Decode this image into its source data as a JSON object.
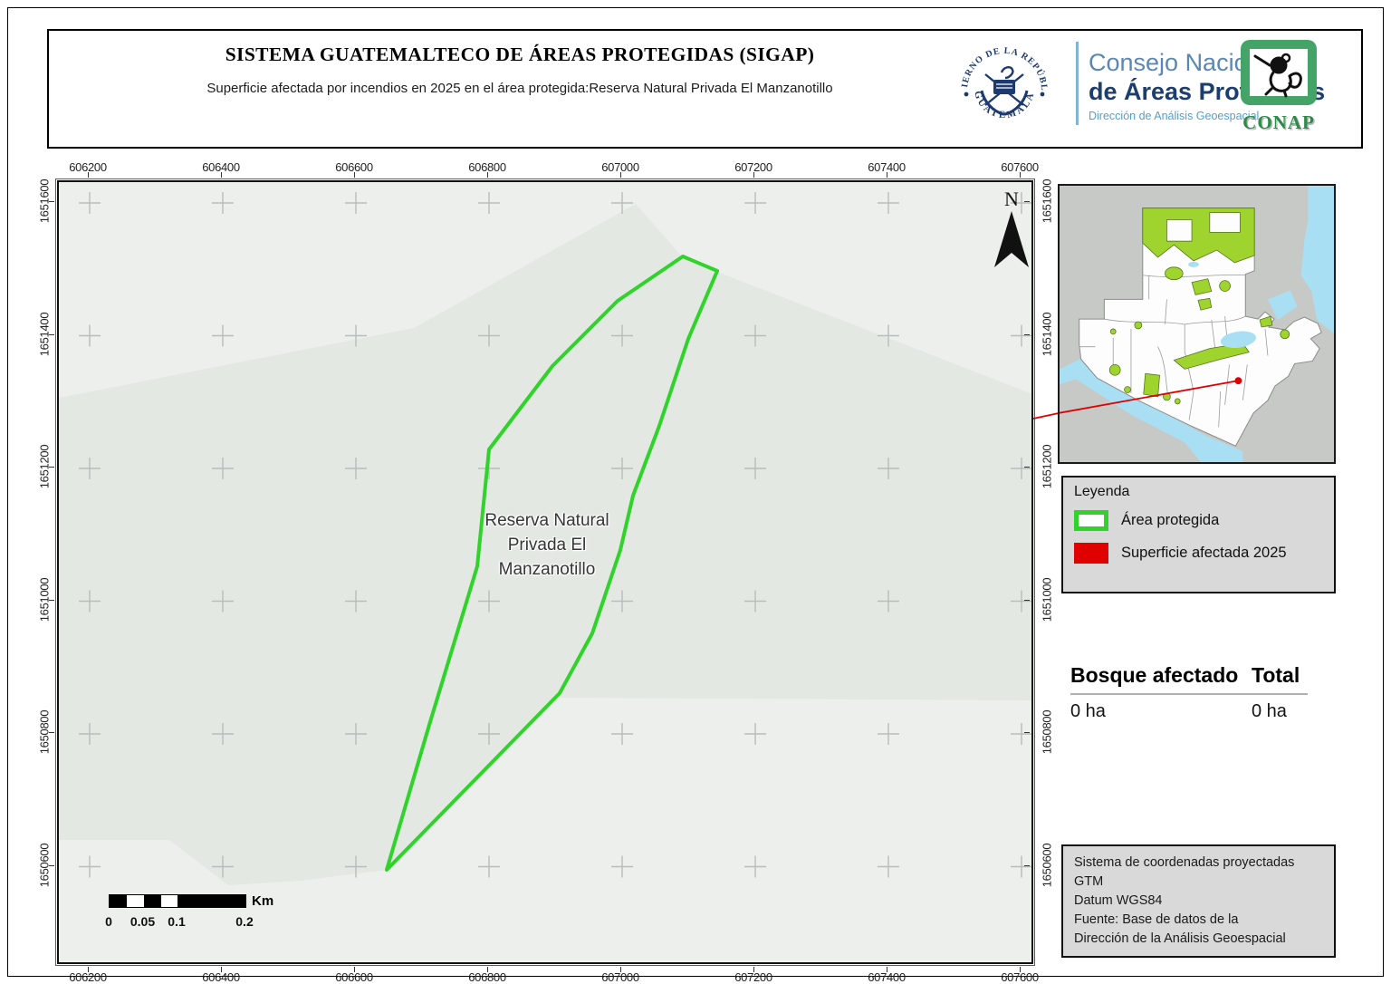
{
  "header": {
    "title": "SISTEMA GUATEMALTECO DE ÁREAS PROTEGIDAS  (SIGAP)",
    "subtitle": "Superficie afectada por incendios en 2025 en el área protegida:Reserva Natural Privada El Manzanotillo",
    "seal_text_top": "GOBIERNO DE LA REPÚBLICA",
    "seal_text_bottom": "GUATEMALA",
    "consejo_line1": "Consejo Nacional",
    "consejo_line2": "de Áreas Protegidas",
    "consejo_line3": "Dirección de Análisis Geoespacial",
    "conap_name": "CONAP"
  },
  "map": {
    "x_ticks": [
      "606200",
      "606400",
      "606600",
      "606800",
      "607000",
      "607200",
      "607400",
      "607600"
    ],
    "y_ticks": [
      "1651600",
      "1651400",
      "1651200",
      "1651000",
      "1650800",
      "1650600"
    ],
    "area_label_line1": "Reserva Natural",
    "area_label_line2": "Privada El",
    "area_label_line3": "Manzanotillo",
    "north_label": "N",
    "scalebar": {
      "labels": [
        "0",
        "0.05",
        "0.1",
        "0.2"
      ],
      "unit": "Km"
    }
  },
  "legend": {
    "title": "Leyenda",
    "items": [
      {
        "label": "Área protegida",
        "swatch": "outline"
      },
      {
        "label": "Superficie afectada 2025",
        "swatch": "fill"
      }
    ]
  },
  "stats": {
    "columns": [
      {
        "header": "Bosque afectado",
        "value": "0 ha"
      },
      {
        "header": "Total",
        "value": "0 ha"
      }
    ]
  },
  "credits": {
    "lines": [
      "Sistema de coordenadas proyectadas",
      "GTM",
      "Datum WGS84",
      "Fuente: Base de datos de la",
      "Dirección de la Análisis Geoespacial"
    ]
  },
  "colors": {
    "protected_green": "#2fd32a",
    "affected_red": "#e00000",
    "inset_protected_green": "#9fd32e",
    "water_blue": "#a9dff3",
    "terrain_dark": "#e3e8e3",
    "terrain_light": "#edefed",
    "brand_blue_dark": "#1c3e6e",
    "brand_blue_light": "#5b87b5"
  }
}
